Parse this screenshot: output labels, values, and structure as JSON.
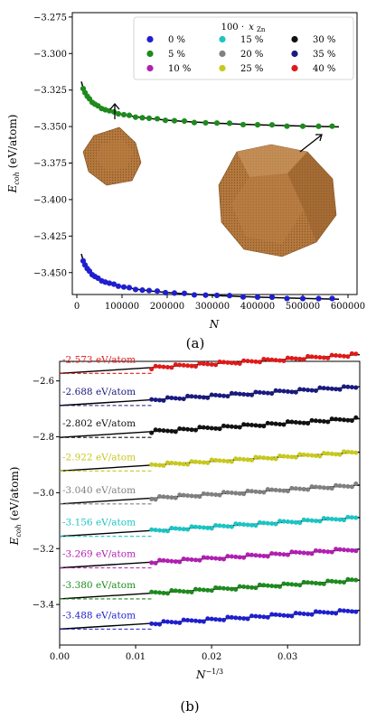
{
  "figure": {
    "panel_a_caption": "(a)",
    "panel_b_caption": "(b)"
  },
  "chart_data": [
    {
      "type": "scatter",
      "panel": "(a)",
      "xlabel": "N",
      "ylabel": "E_coh (eV/atom)",
      "ylabel_parts": {
        "main": "E",
        "sub": "coh",
        "unit": " (eV/atom)"
      },
      "xlim": [
        -10000,
        620000
      ],
      "ylim": [
        -3.465,
        -3.272
      ],
      "xticks": [
        0,
        100000,
        200000,
        300000,
        400000,
        500000,
        600000
      ],
      "yticks": [
        -3.275,
        -3.3,
        -3.325,
        -3.35,
        -3.375,
        -3.4,
        -3.425,
        -3.45
      ],
      "ytick_labels": [
        "−3.275",
        "−3.300",
        "−3.325",
        "−3.350",
        "−3.375",
        "−3.400",
        "−3.425",
        "−3.450"
      ],
      "legend": {
        "title_prefix": "100 ·",
        "title_var": "x",
        "title_sub": "Zn",
        "placement": "top-right",
        "entries": [
          {
            "label": "0 %",
            "color": "#1f1fcf"
          },
          {
            "label": "5 %",
            "color": "#1e8a1e"
          },
          {
            "label": "10 %",
            "color": "#b11fb1"
          },
          {
            "label": "15 %",
            "color": "#1cc4c4"
          },
          {
            "label": "20 %",
            "color": "#808080"
          },
          {
            "label": "25 %",
            "color": "#c8c81e"
          },
          {
            "label": "30 %",
            "color": "#111111"
          },
          {
            "label": "35 %",
            "color": "#1a1a80"
          },
          {
            "label": "40 %",
            "color": "#e01a1a"
          }
        ]
      },
      "series": [
        {
          "name": "5 %",
          "color": "#1e8a1e",
          "fit": {
            "Einf": -3.361,
            "A": 0.9,
            "x_from": 10000,
            "x_to": 580000
          },
          "x": [
            14000,
            18000,
            23000,
            28000,
            34000,
            40000,
            47000,
            55000,
            63000,
            72000,
            82000,
            92000,
            104000,
            116000,
            130000,
            145000,
            160000,
            178000,
            196000,
            216000,
            238000,
            260000,
            285000,
            310000,
            338000,
            368000,
            400000,
            432000,
            465000,
            500000,
            535000,
            565000
          ]
        },
        {
          "name": "0 %",
          "color": "#1f1fcf",
          "fit": {
            "Einf": -3.479,
            "A": 0.9,
            "x_from": 10000,
            "x_to": 580000
          },
          "x": [
            14000,
            18000,
            23000,
            28000,
            34000,
            40000,
            47000,
            55000,
            63000,
            72000,
            82000,
            92000,
            104000,
            116000,
            130000,
            145000,
            160000,
            178000,
            196000,
            216000,
            238000,
            260000,
            285000,
            310000,
            338000,
            368000,
            400000,
            432000,
            465000,
            500000,
            535000,
            565000
          ]
        }
      ]
    },
    {
      "type": "scatter",
      "panel": "(b)",
      "xlabel": "N^-1/3",
      "xlabel_parts": {
        "main": "N",
        "sup": "−1/3"
      },
      "ylabel": "E_coh (eV/atom)",
      "ylabel_parts": {
        "main": "E",
        "sub": "coh",
        "unit": " (eV/atom)"
      },
      "xlim": [
        0.0,
        0.0395
      ],
      "ylim": [
        -3.545,
        -2.53
      ],
      "xticks": [
        0.0,
        0.01,
        0.02,
        0.03
      ],
      "xtick_labels": [
        "0.00",
        "0.01",
        "0.02",
        "0.03"
      ],
      "yticks": [
        -2.6,
        -2.8,
        -3.0,
        -3.2,
        -3.4
      ],
      "ytick_labels": [
        "−2.6",
        "−2.8",
        "−3.0",
        "−3.2",
        "−3.4"
      ],
      "x_data_range": [
        0.0121,
        0.039
      ],
      "series": [
        {
          "name": "40 %",
          "color": "#e01a1a",
          "intercept": -2.573,
          "slope": 1.7,
          "label": "-2.573 eV/atom"
        },
        {
          "name": "35 %",
          "color": "#1a1a80",
          "intercept": -2.688,
          "slope": 1.7,
          "label": "-2.688 eV/atom"
        },
        {
          "name": "30 %",
          "color": "#111111",
          "intercept": -2.802,
          "slope": 1.7,
          "label": "-2.802 eV/atom"
        },
        {
          "name": "25 %",
          "color": "#c8c81e",
          "intercept": -2.922,
          "slope": 1.7,
          "label": "-2.922 eV/atom"
        },
        {
          "name": "20 %",
          "color": "#808080",
          "intercept": -3.04,
          "slope": 1.7,
          "label": "-3.040 eV/atom"
        },
        {
          "name": "15 %",
          "color": "#1cc4c4",
          "intercept": -3.156,
          "slope": 1.7,
          "label": "-3.156 eV/atom"
        },
        {
          "name": "10 %",
          "color": "#b11fb1",
          "intercept": -3.269,
          "slope": 1.7,
          "label": "-3.269 eV/atom"
        },
        {
          "name": "5 %",
          "color": "#1e8a1e",
          "intercept": -3.38,
          "slope": 1.7,
          "label": "-3.380 eV/atom"
        },
        {
          "name": "0 %",
          "color": "#1f1fcf",
          "intercept": -3.488,
          "slope": 1.7,
          "label": "-3.488 eV/atom"
        }
      ]
    }
  ]
}
